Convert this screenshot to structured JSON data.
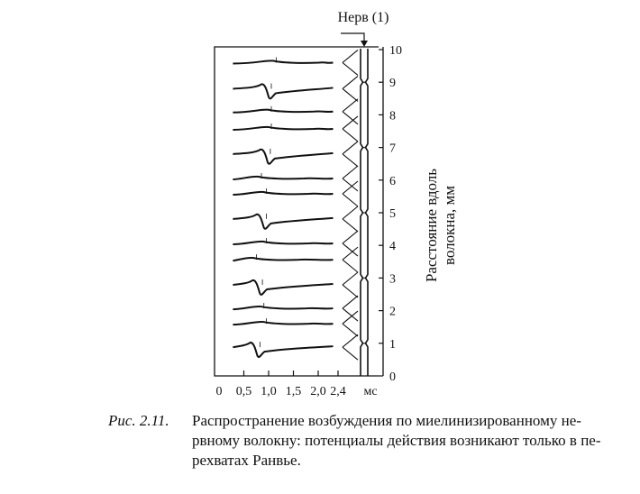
{
  "figure": {
    "nerve_label": "Нерв (1)",
    "x_ticks": [
      {
        "label": "0",
        "value": 0
      },
      {
        "label": "0,5",
        "value": 0.5
      },
      {
        "label": "1,0",
        "value": 1.0
      },
      {
        "label": "1,5",
        "value": 1.5
      },
      {
        "label": "2,0",
        "value": 2.0
      },
      {
        "label": "2,4",
        "value": 2.4
      }
    ],
    "x_unit": "мс",
    "y_ticks": [
      "0",
      "1",
      "2",
      "3",
      "4",
      "5",
      "6",
      "7",
      "8",
      "9",
      "10"
    ],
    "y_label_line1": "Расстояние вдоль",
    "y_label_line2": "волокна, мм",
    "ranvier_nodes_mm": [
      1,
      3,
      5,
      7,
      9
    ],
    "traces": [
      {
        "mm": 9.6,
        "type": "small",
        "latency_ms": 1.1
      },
      {
        "mm": 8.8,
        "type": "spike",
        "latency_ms": 1.0
      },
      {
        "mm": 8.1,
        "type": "small",
        "latency_ms": 1.0
      },
      {
        "mm": 7.57,
        "type": "small",
        "latency_ms": 1.0
      },
      {
        "mm": 6.8,
        "type": "spike",
        "latency_ms": 0.98
      },
      {
        "mm": 6.05,
        "type": "small",
        "latency_ms": 0.8
      },
      {
        "mm": 5.58,
        "type": "small",
        "latency_ms": 0.9
      },
      {
        "mm": 4.81,
        "type": "spike",
        "latency_ms": 0.9
      },
      {
        "mm": 4.06,
        "type": "small",
        "latency_ms": 0.9
      },
      {
        "mm": 3.56,
        "type": "small",
        "latency_ms": 0.7
      },
      {
        "mm": 2.79,
        "type": "spike",
        "latency_ms": 0.82
      },
      {
        "mm": 2.07,
        "type": "small",
        "latency_ms": 0.85
      },
      {
        "mm": 1.6,
        "type": "small",
        "latency_ms": 0.9
      },
      {
        "mm": 0.88,
        "type": "spike",
        "latency_ms": 0.77
      }
    ]
  },
  "caption": {
    "label": "Рис. 2.11.",
    "line1": "Распространение возбуждения по миелинизированному не-",
    "line2": "рвному волокну: потенциалы действия возникают только в пе-",
    "line3": "рехватах Ранвье."
  }
}
